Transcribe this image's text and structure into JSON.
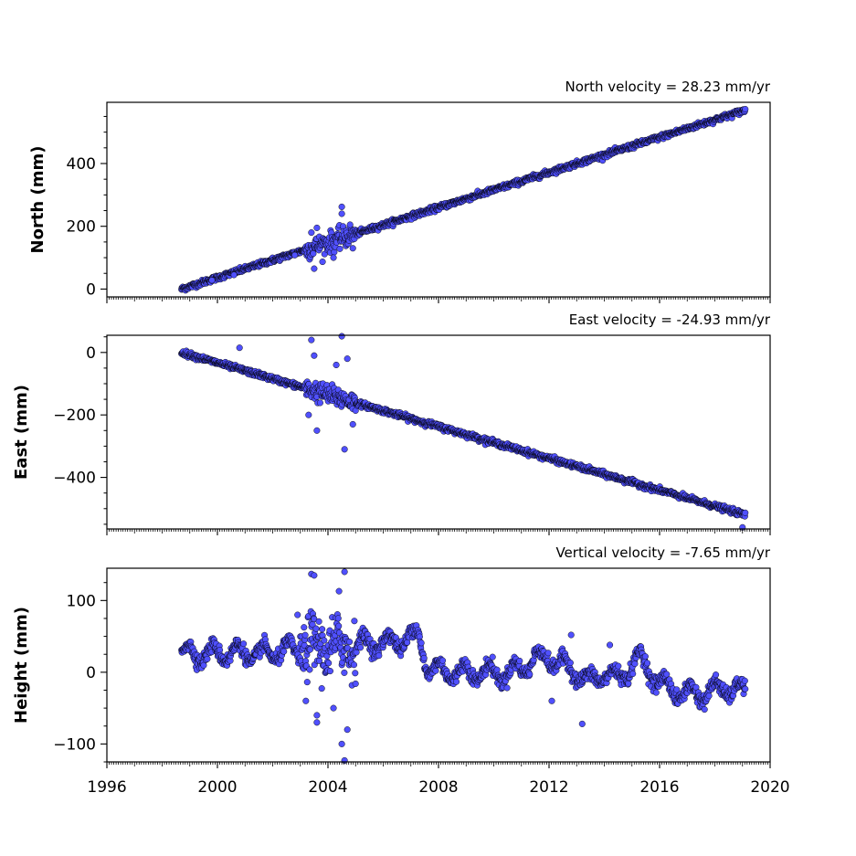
{
  "chart_data": [
    {
      "type": "scatter",
      "title": "North velocity = 28.23 mm/yr",
      "xlabel": "",
      "ylabel": "North (mm)",
      "xlim": [
        1996,
        2020
      ],
      "ylim": [
        -25,
        595
      ],
      "yticks": [
        0,
        200,
        400
      ],
      "ytick_labels": [
        "0",
        "200",
        "400"
      ],
      "marker_color": "#5050ff",
      "marker_edge": "#000000",
      "grid": false,
      "trend": {
        "start": [
          1998.7,
          0
        ],
        "end": [
          2019.1,
          570
        ],
        "slope_mm_per_yr": 28.23
      },
      "scatter_sd": 4,
      "outliers": [
        {
          "x": 2003.5,
          "y": 65
        },
        {
          "x": 2003.6,
          "y": 195
        },
        {
          "x": 2004.5,
          "y": 262
        },
        {
          "x": 2004.5,
          "y": 240
        },
        {
          "x": 2004.8,
          "y": 205
        },
        {
          "x": 2003.4,
          "y": 180
        },
        {
          "x": 2004.2,
          "y": 100
        },
        {
          "x": 2002.8,
          "y": 108
        },
        {
          "x": 2000.6,
          "y": 45
        },
        {
          "x": 1999.8,
          "y": 28
        },
        {
          "x": 2004.9,
          "y": 130
        }
      ],
      "noisy_period": [
        2003.2,
        2005.0
      ]
    },
    {
      "type": "scatter",
      "title": "East velocity = -24.93 mm/yr",
      "xlabel": "",
      "ylabel": "East (mm)",
      "xlim": [
        1996,
        2020
      ],
      "ylim": [
        -565,
        55
      ],
      "yticks": [
        -400,
        -200,
        0
      ],
      "ytick_labels": [
        "−400",
        "−200",
        "0"
      ],
      "marker_color": "#5050ff",
      "marker_edge": "#000000",
      "grid": false,
      "trend": {
        "start": [
          1998.7,
          0
        ],
        "end": [
          2019.1,
          -520
        ],
        "slope_mm_per_yr": -24.93
      },
      "scatter_sd": 4,
      "outliers": [
        {
          "x": 2004.5,
          "y": 52
        },
        {
          "x": 2003.4,
          "y": 40
        },
        {
          "x": 2004.6,
          "y": -310
        },
        {
          "x": 2003.6,
          "y": -250
        },
        {
          "x": 2000.8,
          "y": 15
        },
        {
          "x": 2004.3,
          "y": -40
        },
        {
          "x": 2004.7,
          "y": -20
        },
        {
          "x": 2003.5,
          "y": -10
        },
        {
          "x": 2019.0,
          "y": -560
        },
        {
          "x": 2003.3,
          "y": -200
        },
        {
          "x": 2004.9,
          "y": -230
        }
      ],
      "noisy_period": [
        2003.2,
        2005.0
      ]
    },
    {
      "type": "scatter",
      "title": "Vertical velocity = -7.65 mm/yr",
      "xlabel": "",
      "ylabel": "Height (mm)",
      "xlim": [
        1996,
        2020
      ],
      "ylim": [
        -125,
        145
      ],
      "yticks": [
        -100,
        0,
        100
      ],
      "ytick_labels": [
        "−100",
        "0",
        "100"
      ],
      "xticks": [
        1996,
        2000,
        2004,
        2008,
        2012,
        2016,
        2020
      ],
      "xtick_labels": [
        "1996",
        "2000",
        "2004",
        "2008",
        "2012",
        "2016",
        "2020"
      ],
      "marker_color": "#5050ff",
      "marker_edge": "#000000",
      "grid": false,
      "profile": [
        [
          1998.7,
          28
        ],
        [
          1999.5,
          25
        ],
        [
          2000.5,
          28
        ],
        [
          2001.5,
          25
        ],
        [
          2002.5,
          30
        ],
        [
          2003.5,
          35
        ],
        [
          2004.5,
          35
        ],
        [
          2005.5,
          40
        ],
        [
          2006.5,
          42
        ],
        [
          2007.0,
          50
        ],
        [
          2007.3,
          50
        ],
        [
          2007.6,
          5
        ],
        [
          2008.5,
          0
        ],
        [
          2009.5,
          0
        ],
        [
          2010.5,
          -2
        ],
        [
          2011.0,
          5
        ],
        [
          2011.5,
          20
        ],
        [
          2012.0,
          20
        ],
        [
          2012.5,
          10
        ],
        [
          2013.0,
          0
        ],
        [
          2013.5,
          -15
        ],
        [
          2014.0,
          0
        ],
        [
          2014.5,
          -10
        ],
        [
          2015.0,
          10
        ],
        [
          2015.3,
          20
        ],
        [
          2015.7,
          0
        ],
        [
          2016.0,
          -15
        ],
        [
          2016.5,
          -25
        ],
        [
          2017.0,
          -30
        ],
        [
          2017.5,
          -30
        ],
        [
          2018.0,
          -25
        ],
        [
          2018.5,
          -22
        ],
        [
          2019.1,
          -28
        ]
      ],
      "oscillation_amplitude": 12,
      "scatter_sd": 5,
      "outliers": [
        {
          "x": 2003.4,
          "y": 137
        },
        {
          "x": 2003.5,
          "y": 135
        },
        {
          "x": 2004.6,
          "y": 140
        },
        {
          "x": 2004.4,
          "y": 113
        },
        {
          "x": 2002.9,
          "y": 80
        },
        {
          "x": 2003.6,
          "y": -60
        },
        {
          "x": 2003.6,
          "y": -70
        },
        {
          "x": 2004.5,
          "y": -100
        },
        {
          "x": 2004.6,
          "y": -123
        },
        {
          "x": 2004.2,
          "y": -50
        },
        {
          "x": 2012.8,
          "y": 52
        },
        {
          "x": 2013.2,
          "y": -72
        },
        {
          "x": 2012.1,
          "y": -40
        },
        {
          "x": 2014.2,
          "y": 38
        },
        {
          "x": 2004.7,
          "y": -80
        },
        {
          "x": 2003.2,
          "y": -40
        }
      ],
      "noisy_period": [
        2003.0,
        2005.0
      ]
    }
  ]
}
